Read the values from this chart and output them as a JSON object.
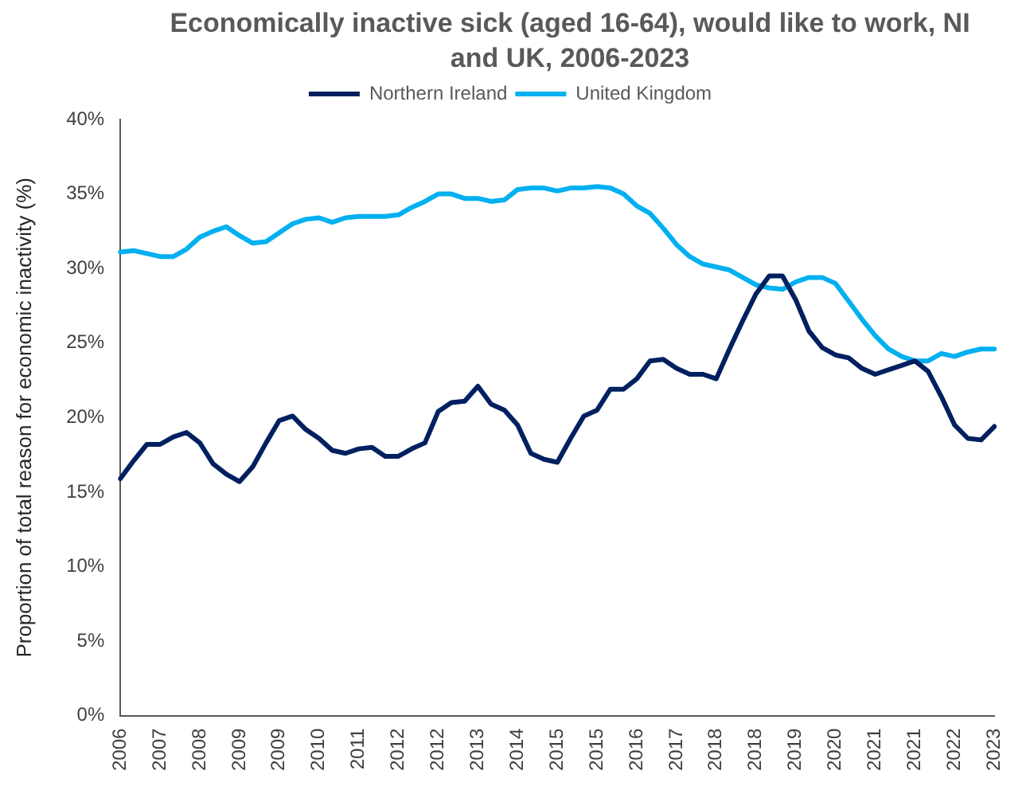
{
  "chart_data": {
    "type": "line",
    "title": "Economically inactive sick (aged 16-64), would like to work, NI and UK, 2006-2023",
    "ylabel": "Proportion of total reason for economic inactivity (%)",
    "categories": [
      "2006",
      null,
      null,
      "2007",
      null,
      null,
      "2008",
      null,
      null,
      "2009",
      null,
      null,
      "2009",
      null,
      null,
      "2010",
      null,
      null,
      "2011",
      null,
      null,
      "2012",
      null,
      null,
      "2012",
      null,
      null,
      "2013",
      null,
      null,
      "2014",
      null,
      null,
      "2015",
      null,
      null,
      "2015",
      null,
      null,
      "2016",
      null,
      null,
      "2017",
      null,
      null,
      "2018",
      null,
      null,
      "2018",
      null,
      null,
      "2019",
      null,
      null,
      "2020",
      null,
      null,
      "2021",
      null,
      null,
      "2021",
      null,
      null,
      "2022",
      null,
      null,
      "2023"
    ],
    "series": [
      {
        "name": "Northern Ireland",
        "color": "#002060",
        "values": [
          15.9,
          17.1,
          18.2,
          18.2,
          18.7,
          19.0,
          18.3,
          16.9,
          16.2,
          15.7,
          16.7,
          18.3,
          19.8,
          20.1,
          19.2,
          18.6,
          17.8,
          17.6,
          17.9,
          18.0,
          17.4,
          17.4,
          17.9,
          18.3,
          20.4,
          21.0,
          21.1,
          22.1,
          20.9,
          20.5,
          19.5,
          17.6,
          17.2,
          17.0,
          18.6,
          20.1,
          20.5,
          21.9,
          21.9,
          22.6,
          23.8,
          23.9,
          23.3,
          22.9,
          22.9,
          22.6,
          24.6,
          26.5,
          28.3,
          29.5,
          29.5,
          27.9,
          25.8,
          24.7,
          24.2,
          24.0,
          23.3,
          22.9,
          23.2,
          23.5,
          23.8,
          23.1,
          21.4,
          19.5,
          18.6,
          18.5,
          19.4
        ]
      },
      {
        "name": "United Kingdom",
        "color": "#00b0f0",
        "values": [
          31.1,
          31.2,
          31.0,
          30.8,
          30.8,
          31.3,
          32.1,
          32.5,
          32.8,
          32.2,
          31.7,
          31.8,
          32.4,
          33.0,
          33.3,
          33.4,
          33.1,
          33.4,
          33.5,
          33.5,
          33.5,
          33.6,
          34.1,
          34.5,
          35.0,
          35.0,
          34.7,
          34.7,
          34.5,
          34.6,
          35.3,
          35.4,
          35.4,
          35.2,
          35.4,
          35.4,
          35.5,
          35.4,
          35.0,
          34.2,
          33.7,
          32.7,
          31.6,
          30.8,
          30.3,
          30.1,
          29.9,
          29.4,
          28.9,
          28.7,
          28.6,
          29.1,
          29.4,
          29.4,
          29.0,
          27.8,
          26.6,
          25.5,
          24.6,
          24.1,
          23.8,
          23.8,
          24.3,
          24.1,
          24.4,
          24.6,
          24.6
        ]
      }
    ],
    "ylim": [
      0,
      40
    ],
    "yticks": [
      {
        "value": 0,
        "label": "0%"
      },
      {
        "value": 5,
        "label": "5%"
      },
      {
        "value": 10,
        "label": "10%"
      },
      {
        "value": 15,
        "label": "15%"
      },
      {
        "value": 20,
        "label": "20%"
      },
      {
        "value": 25,
        "label": "25%"
      },
      {
        "value": 30,
        "label": "30%"
      },
      {
        "value": 35,
        "label": "35%"
      },
      {
        "value": 40,
        "label": "40%"
      }
    ],
    "grid": false,
    "legend": "top",
    "marker": "none"
  }
}
